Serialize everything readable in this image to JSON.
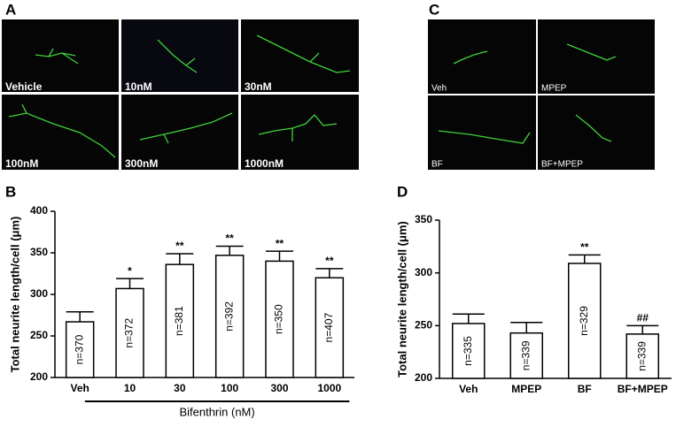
{
  "figure": {
    "panel_letters": [
      "A",
      "B",
      "C",
      "D"
    ],
    "panel_a_labels": [
      "Vehicle",
      "10nM",
      "30nM",
      "100nM",
      "300nM",
      "1000nM"
    ],
    "panel_c_labels": [
      "Veh",
      "MPEP",
      "BF",
      "BF+MPEP"
    ]
  },
  "chart_data": [
    {
      "type": "bar",
      "ylabel": "Total neurite length/cell (μm)",
      "xlabel": "Bifenthrin (nM)",
      "categories": [
        "Veh",
        "10",
        "30",
        "100",
        "300",
        "1000"
      ],
      "values": [
        267,
        307,
        336,
        347,
        340,
        320
      ],
      "errors": [
        12,
        12,
        13,
        11,
        12,
        11
      ],
      "n_labels": [
        "n=370",
        "n=372",
        "n=381",
        "n=392",
        "n=350",
        "n=407"
      ],
      "significance": [
        null,
        "*",
        "**",
        "**",
        "**",
        "**"
      ],
      "color": "#ffffff",
      "ylim": [
        200,
        400
      ],
      "yticks": [
        200,
        250,
        300,
        350,
        400
      ]
    },
    {
      "type": "bar",
      "ylabel": "Total neurite length/cell (μm)",
      "categories": [
        "Veh",
        "MPEP",
        "BF",
        "BF+MPEP"
      ],
      "values": [
        252,
        243,
        309,
        242
      ],
      "errors": [
        9,
        10,
        8,
        8
      ],
      "n_labels": [
        "n=335",
        "n=339",
        "n=329",
        "n=339"
      ],
      "significance": [
        null,
        null,
        "**",
        "##"
      ],
      "color": "#ffffff",
      "ylim": [
        200,
        350
      ],
      "yticks": [
        200,
        250,
        300,
        350
      ]
    }
  ]
}
